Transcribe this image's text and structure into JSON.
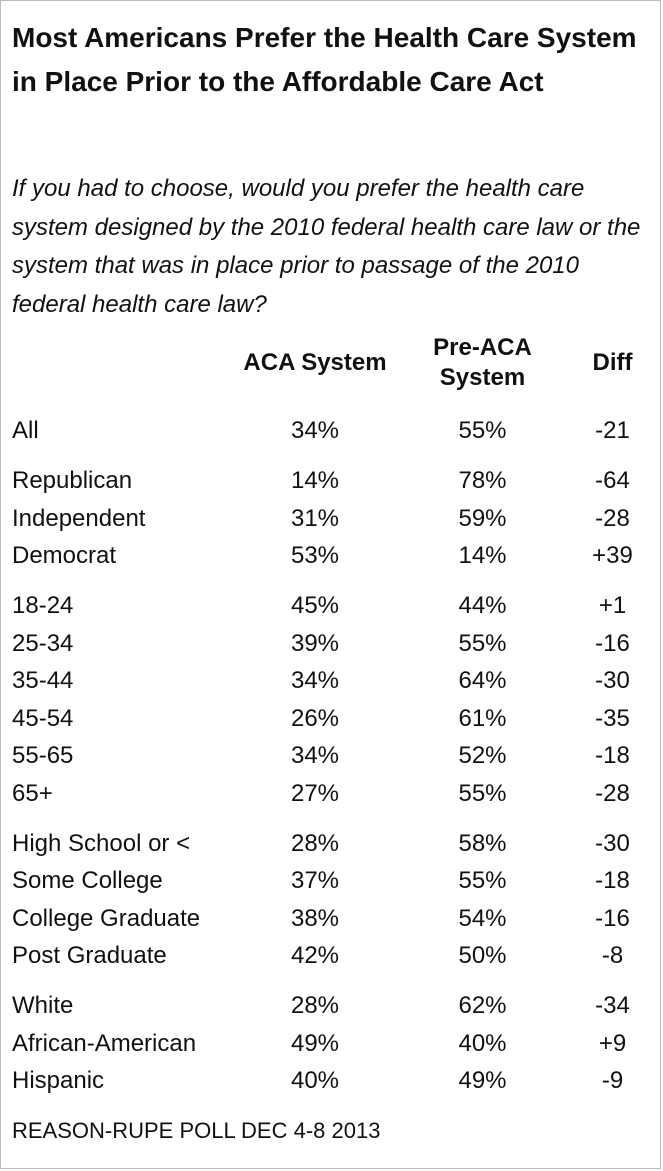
{
  "chart_data": {
    "type": "table",
    "title": "Most Americans Prefer the Health Care System in Place Prior to the Affordable Care Act",
    "subtitle": "If you had to choose, would you prefer the health care system designed by the 2010 federal health care law or the system that was in place prior to passage of the 2010 federal health care law?",
    "columns": [
      "ACA System",
      "Pre-ACA System",
      "Diff"
    ],
    "rows": [
      {
        "label": "All",
        "aca": "34%",
        "pre": "55%",
        "diff": "-21"
      },
      {
        "label": "Republican",
        "aca": "14%",
        "pre": "78%",
        "diff": "-64"
      },
      {
        "label": "Independent",
        "aca": "31%",
        "pre": "59%",
        "diff": "-28"
      },
      {
        "label": "Democrat",
        "aca": "53%",
        "pre": "14%",
        "diff": "+39"
      },
      {
        "label": "18-24",
        "aca": "45%",
        "pre": "44%",
        "diff": "+1"
      },
      {
        "label": "25-34",
        "aca": "39%",
        "pre": "55%",
        "diff": "-16"
      },
      {
        "label": "35-44",
        "aca": "34%",
        "pre": "64%",
        "diff": "-30"
      },
      {
        "label": "45-54",
        "aca": "26%",
        "pre": "61%",
        "diff": "-35"
      },
      {
        "label": "55-65",
        "aca": "34%",
        "pre": "52%",
        "diff": "-18"
      },
      {
        "label": "65+",
        "aca": "27%",
        "pre": "55%",
        "diff": "-28"
      },
      {
        "label": "High School or <",
        "aca": "28%",
        "pre": "58%",
        "diff": "-30"
      },
      {
        "label": "Some College",
        "aca": "37%",
        "pre": "55%",
        "diff": "-18"
      },
      {
        "label": "College Graduate",
        "aca": "38%",
        "pre": "54%",
        "diff": "-16"
      },
      {
        "label": "Post Graduate",
        "aca": "42%",
        "pre": "50%",
        "diff": "-8"
      },
      {
        "label": "White",
        "aca": "28%",
        "pre": "62%",
        "diff": "-34"
      },
      {
        "label": "African-American",
        "aca": "49%",
        "pre": "40%",
        "diff": "+9"
      },
      {
        "label": "Hispanic",
        "aca": "40%",
        "pre": "49%",
        "diff": "-9"
      }
    ],
    "source": "REASON-RUPE POLL DEC 4-8 2013"
  }
}
